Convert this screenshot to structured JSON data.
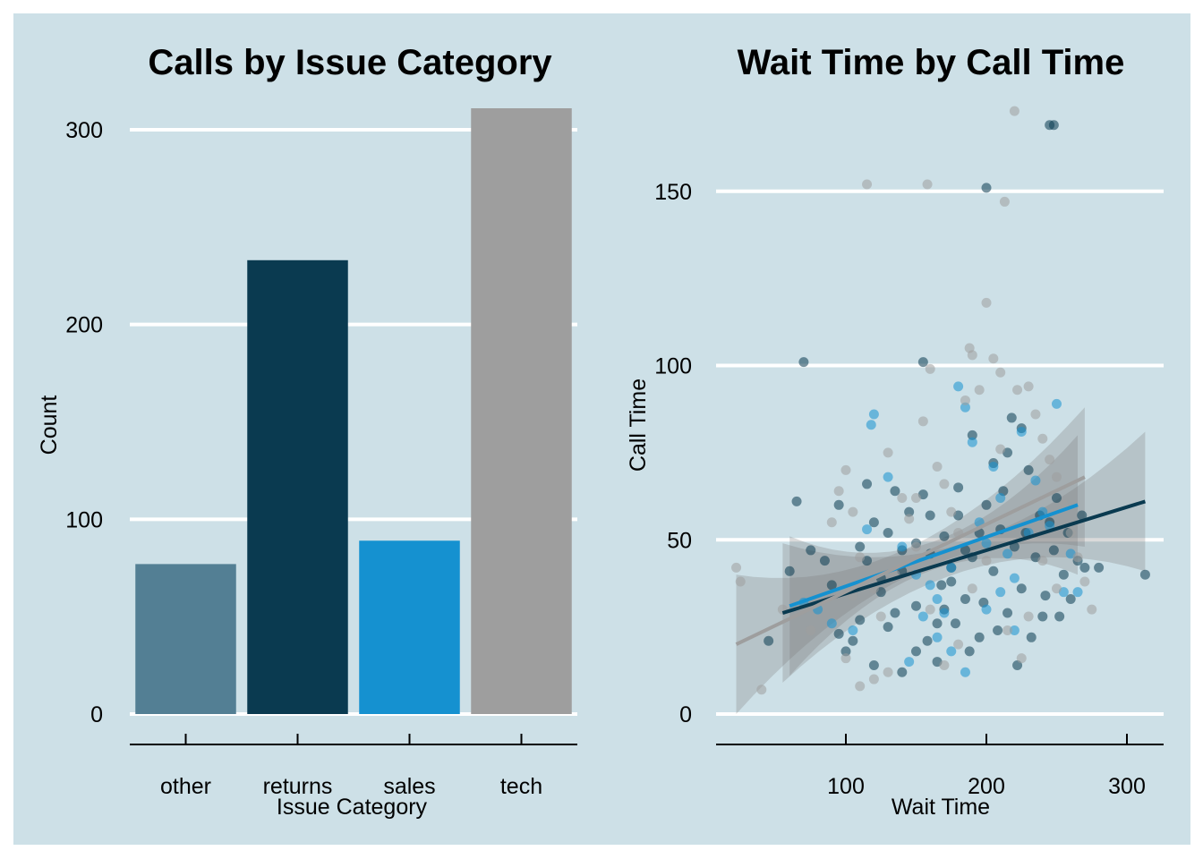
{
  "colors": {
    "background": "#cde0e7",
    "gridline": "#ffffff",
    "axis": "#000000"
  },
  "chart_data": [
    {
      "type": "bar",
      "title": "Calls by Issue Category",
      "xlabel": "Issue Category",
      "ylabel": "Count",
      "categories": [
        "other",
        "returns",
        "sales",
        "tech"
      ],
      "values": [
        77,
        233,
        89,
        311
      ],
      "colors": [
        "#537f94",
        "#0a3a50",
        "#1591d0",
        "#9e9e9e"
      ],
      "ylim": [
        0,
        311
      ],
      "yticks": [
        0,
        100,
        200,
        300
      ],
      "grid": "horizontal"
    },
    {
      "type": "scatter",
      "title": "Wait Time by Call Time",
      "xlabel": "Wait Time",
      "ylabel": "Call Time",
      "xlim": [
        20,
        315
      ],
      "ylim": [
        0,
        175
      ],
      "xticks": [
        100,
        200,
        300
      ],
      "yticks": [
        0,
        50,
        100,
        150
      ],
      "grid": "horizontal",
      "series": [
        {
          "color": "#0a3a50",
          "fit": {
            "x": [
              55,
              313
            ],
            "y": [
              29,
              61
            ]
          },
          "points": [
            [
              70,
              101
            ],
            [
              155,
              101
            ],
            [
              45,
              21
            ],
            [
              60,
              41
            ],
            [
              65,
              61
            ],
            [
              75,
              47
            ],
            [
              85,
              44
            ],
            [
              90,
              37
            ],
            [
              95,
              60
            ],
            [
              105,
              21
            ],
            [
              110,
              48
            ],
            [
              115,
              66
            ],
            [
              120,
              55
            ],
            [
              125,
              35
            ],
            [
              130,
              52
            ],
            [
              135,
              29
            ],
            [
              140,
              41
            ],
            [
              145,
              58
            ],
            [
              150,
              31
            ],
            [
              155,
              63
            ],
            [
              160,
              46
            ],
            [
              165,
              26
            ],
            [
              170,
              51
            ],
            [
              175,
              38
            ],
            [
              180,
              57
            ],
            [
              185,
              33
            ],
            [
              190,
              45
            ],
            [
              195,
              22
            ],
            [
              200,
              60
            ],
            [
              205,
              41
            ],
            [
              210,
              53
            ],
            [
              215,
              29
            ],
            [
              220,
              48
            ],
            [
              225,
              36
            ],
            [
              230,
              70
            ],
            [
              235,
              45
            ],
            [
              240,
              28
            ],
            [
              245,
              55
            ],
            [
              250,
              62
            ],
            [
              255,
              40
            ],
            [
              260,
              33
            ],
            [
              265,
              44
            ],
            [
              270,
              42
            ],
            [
              280,
              42
            ],
            [
              313,
              40
            ],
            [
              200,
              151
            ],
            [
              245,
              169
            ],
            [
              248,
              169
            ],
            [
              215,
              75
            ],
            [
              225,
              82
            ],
            [
              190,
              80
            ],
            [
              180,
              65
            ],
            [
              170,
              30
            ],
            [
              165,
              15
            ],
            [
              150,
              18
            ],
            [
              140,
              12
            ],
            [
              130,
              25
            ],
            [
              120,
              14
            ],
            [
              110,
              27
            ],
            [
              100,
              18
            ],
            [
              95,
              23
            ],
            [
              205,
              72
            ],
            [
              212,
              64
            ],
            [
              218,
              85
            ],
            [
              228,
              52
            ],
            [
              238,
              57
            ],
            [
              248,
              47
            ],
            [
              258,
              52
            ],
            [
              268,
              57
            ],
            [
              195,
              52
            ],
            [
              185,
              47
            ],
            [
              175,
              42
            ],
            [
              160,
              57
            ],
            [
              150,
              49
            ],
            [
              140,
              47
            ],
            [
              135,
              64
            ],
            [
              125,
              39
            ],
            [
              115,
              44
            ],
            [
              208,
              24
            ],
            [
              222,
              14
            ],
            [
              232,
              22
            ],
            [
              242,
              34
            ],
            [
              252,
              28
            ],
            [
              198,
              32
            ],
            [
              188,
              18
            ],
            [
              178,
              26
            ],
            [
              168,
              37
            ],
            [
              158,
              21
            ]
          ]
        },
        {
          "color": "#1591d0",
          "fit": {
            "x": [
              60,
              265
            ],
            "y": [
              31,
              60
            ]
          },
          "points": [
            [
              70,
              32
            ],
            [
              80,
              30
            ],
            [
              90,
              26
            ],
            [
              105,
              24
            ],
            [
              115,
              53
            ],
            [
              118,
              83
            ],
            [
              120,
              86
            ],
            [
              130,
              68
            ],
            [
              140,
              48
            ],
            [
              150,
              40
            ],
            [
              160,
              37
            ],
            [
              165,
              33
            ],
            [
              170,
              29
            ],
            [
              175,
              42
            ],
            [
              180,
              94
            ],
            [
              185,
              88
            ],
            [
              190,
              78
            ],
            [
              195,
              55
            ],
            [
              200,
              49
            ],
            [
              205,
              71
            ],
            [
              210,
              62
            ],
            [
              215,
              46
            ],
            [
              220,
              39
            ],
            [
              225,
              81
            ],
            [
              230,
              52
            ],
            [
              235,
              67
            ],
            [
              240,
              58
            ],
            [
              245,
              54
            ],
            [
              250,
              89
            ],
            [
              255,
              35
            ],
            [
              260,
              46
            ],
            [
              265,
              35
            ],
            [
              185,
              12
            ],
            [
              175,
              18
            ],
            [
              165,
              22
            ],
            [
              155,
              28
            ],
            [
              145,
              15
            ],
            [
              200,
              30
            ],
            [
              210,
              35
            ],
            [
              220,
              24
            ]
          ]
        },
        {
          "color": "#9e9e9e",
          "fit": {
            "x": [
              22,
              270
            ],
            "y": [
              20,
              68
            ]
          },
          "points": [
            [
              22,
              42
            ],
            [
              25,
              38
            ],
            [
              40,
              7
            ],
            [
              55,
              30
            ],
            [
              75,
              24
            ],
            [
              90,
              55
            ],
            [
              95,
              64
            ],
            [
              100,
              70
            ],
            [
              105,
              58
            ],
            [
              110,
              45
            ],
            [
              115,
              152
            ],
            [
              120,
              36
            ],
            [
              125,
              28
            ],
            [
              130,
              75
            ],
            [
              140,
              62
            ],
            [
              150,
              48
            ],
            [
              155,
              84
            ],
            [
              158,
              152
            ],
            [
              160,
              99
            ],
            [
              165,
              71
            ],
            [
              170,
              66
            ],
            [
              175,
              58
            ],
            [
              180,
              52
            ],
            [
              185,
              90
            ],
            [
              188,
              105
            ],
            [
              190,
              103
            ],
            [
              195,
              93
            ],
            [
              200,
              118
            ],
            [
              205,
              102
            ],
            [
              210,
              98
            ],
            [
              213,
              147
            ],
            [
              220,
              173
            ],
            [
              222,
              93
            ],
            [
              230,
              94
            ],
            [
              235,
              86
            ],
            [
              240,
              79
            ],
            [
              245,
              73
            ],
            [
              250,
              68
            ],
            [
              255,
              60
            ],
            [
              260,
              52
            ],
            [
              265,
              45
            ],
            [
              270,
              38
            ],
            [
              275,
              30
            ],
            [
              130,
              12
            ],
            [
              120,
              10
            ],
            [
              110,
              8
            ],
            [
              100,
              16
            ],
            [
              105,
              34
            ],
            [
              145,
              56
            ],
            [
              135,
              40
            ],
            [
              190,
              36
            ],
            [
              200,
              44
            ],
            [
              210,
              76
            ],
            [
              180,
              20
            ],
            [
              170,
              14
            ],
            [
              160,
              30
            ],
            [
              150,
              62
            ],
            [
              230,
              28
            ],
            [
              240,
              44
            ],
            [
              250,
              36
            ],
            [
              225,
              16
            ],
            [
              215,
              24
            ]
          ]
        }
      ]
    }
  ]
}
